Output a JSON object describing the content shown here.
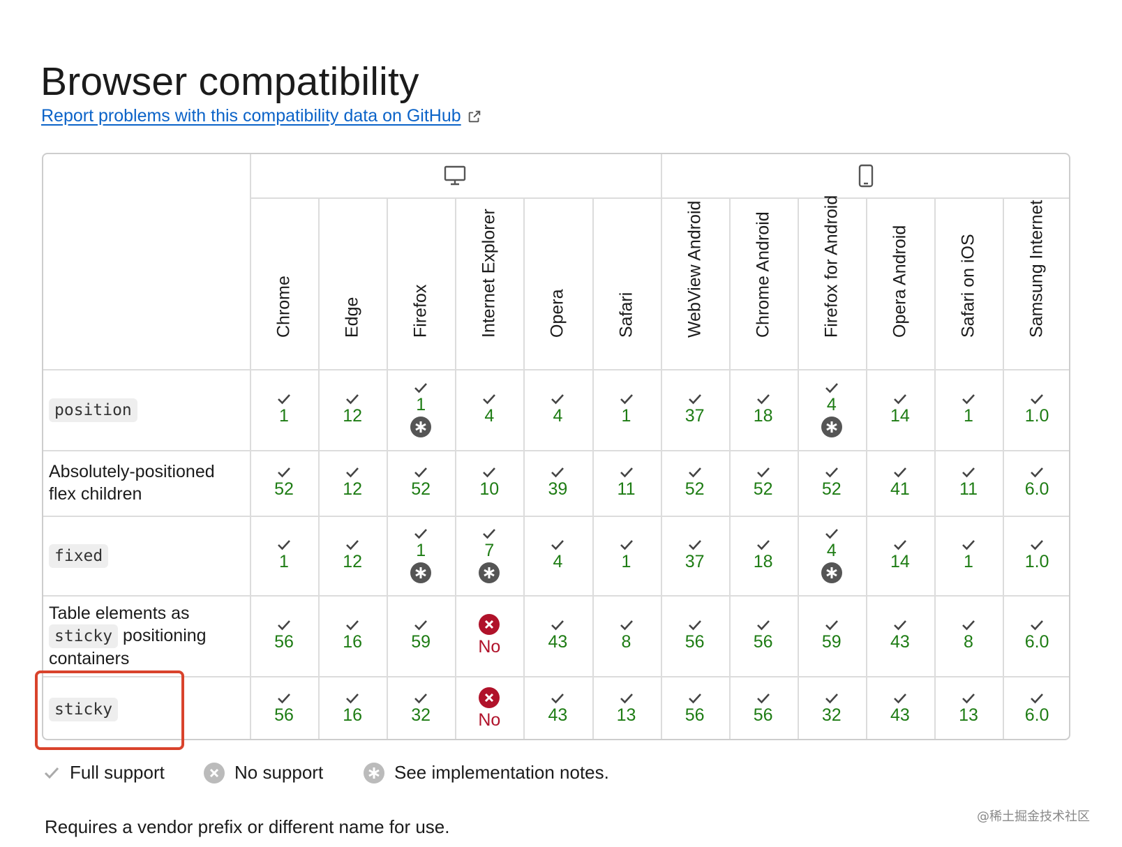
{
  "page": {
    "title": "Browser compatibility",
    "report_link": "Report problems with this compatibility data on GitHub"
  },
  "platforms": [
    {
      "name": "desktop",
      "icon": "desktop-icon"
    },
    {
      "name": "mobile",
      "icon": "mobile-icon"
    }
  ],
  "browsers": [
    "Chrome",
    "Edge",
    "Firefox",
    "Internet Explorer",
    "Opera",
    "Safari",
    "WebView Android",
    "Chrome Android",
    "Firefox for Android",
    "Opera Android",
    "Safari on iOS",
    "Samsung Internet"
  ],
  "rows": [
    {
      "label_parts": [
        {
          "text": "position",
          "code": true
        }
      ],
      "cells": [
        {
          "v": "1"
        },
        {
          "v": "12"
        },
        {
          "v": "1",
          "note": true
        },
        {
          "v": "4"
        },
        {
          "v": "4"
        },
        {
          "v": "1"
        },
        {
          "v": "37"
        },
        {
          "v": "18"
        },
        {
          "v": "4",
          "note": true
        },
        {
          "v": "14"
        },
        {
          "v": "1"
        },
        {
          "v": "1.0"
        }
      ]
    },
    {
      "label_parts": [
        {
          "text": "Absolutely-positioned",
          "code": false
        },
        {
          "text": "flex children",
          "code": false,
          "newline": true
        }
      ],
      "cells": [
        {
          "v": "52"
        },
        {
          "v": "12"
        },
        {
          "v": "52"
        },
        {
          "v": "10"
        },
        {
          "v": "39"
        },
        {
          "v": "11"
        },
        {
          "v": "52"
        },
        {
          "v": "52"
        },
        {
          "v": "52"
        },
        {
          "v": "41"
        },
        {
          "v": "11"
        },
        {
          "v": "6.0"
        }
      ]
    },
    {
      "label_parts": [
        {
          "text": "fixed",
          "code": true
        }
      ],
      "cells": [
        {
          "v": "1"
        },
        {
          "v": "12"
        },
        {
          "v": "1",
          "note": true
        },
        {
          "v": "7",
          "note": true
        },
        {
          "v": "4"
        },
        {
          "v": "1"
        },
        {
          "v": "37"
        },
        {
          "v": "18"
        },
        {
          "v": "4",
          "note": true
        },
        {
          "v": "14"
        },
        {
          "v": "1"
        },
        {
          "v": "1.0"
        }
      ]
    },
    {
      "label_parts": [
        {
          "text": "Table elements as",
          "code": false
        },
        {
          "text": "sticky",
          "code": true,
          "newline": true
        },
        {
          "text": " positioning",
          "code": false
        },
        {
          "text": "containers",
          "code": false,
          "newline": true
        }
      ],
      "cells": [
        {
          "v": "56"
        },
        {
          "v": "16"
        },
        {
          "v": "59"
        },
        {
          "v": "No",
          "no": true
        },
        {
          "v": "43"
        },
        {
          "v": "8"
        },
        {
          "v": "56"
        },
        {
          "v": "56"
        },
        {
          "v": "59"
        },
        {
          "v": "43"
        },
        {
          "v": "8"
        },
        {
          "v": "6.0"
        }
      ]
    },
    {
      "label_parts": [
        {
          "text": "sticky",
          "code": true
        }
      ],
      "cells": [
        {
          "v": "56"
        },
        {
          "v": "16"
        },
        {
          "v": "32"
        },
        {
          "v": "No",
          "no": true
        },
        {
          "v": "43"
        },
        {
          "v": "13"
        },
        {
          "v": "56"
        },
        {
          "v": "56"
        },
        {
          "v": "32"
        },
        {
          "v": "43"
        },
        {
          "v": "13"
        },
        {
          "v": "6.0"
        }
      ]
    }
  ],
  "legend": {
    "full_support": "Full support",
    "no_support": "No support",
    "notes": "See implementation notes."
  },
  "cut_text": "Requires a vendor prefix or different name for use.",
  "watermark": "@稀土掘金技术社区",
  "colors": {
    "supported": "#1e7c14",
    "unsupported": "#b0122a",
    "link": "#0b63c8",
    "highlight": "#d9432c"
  }
}
